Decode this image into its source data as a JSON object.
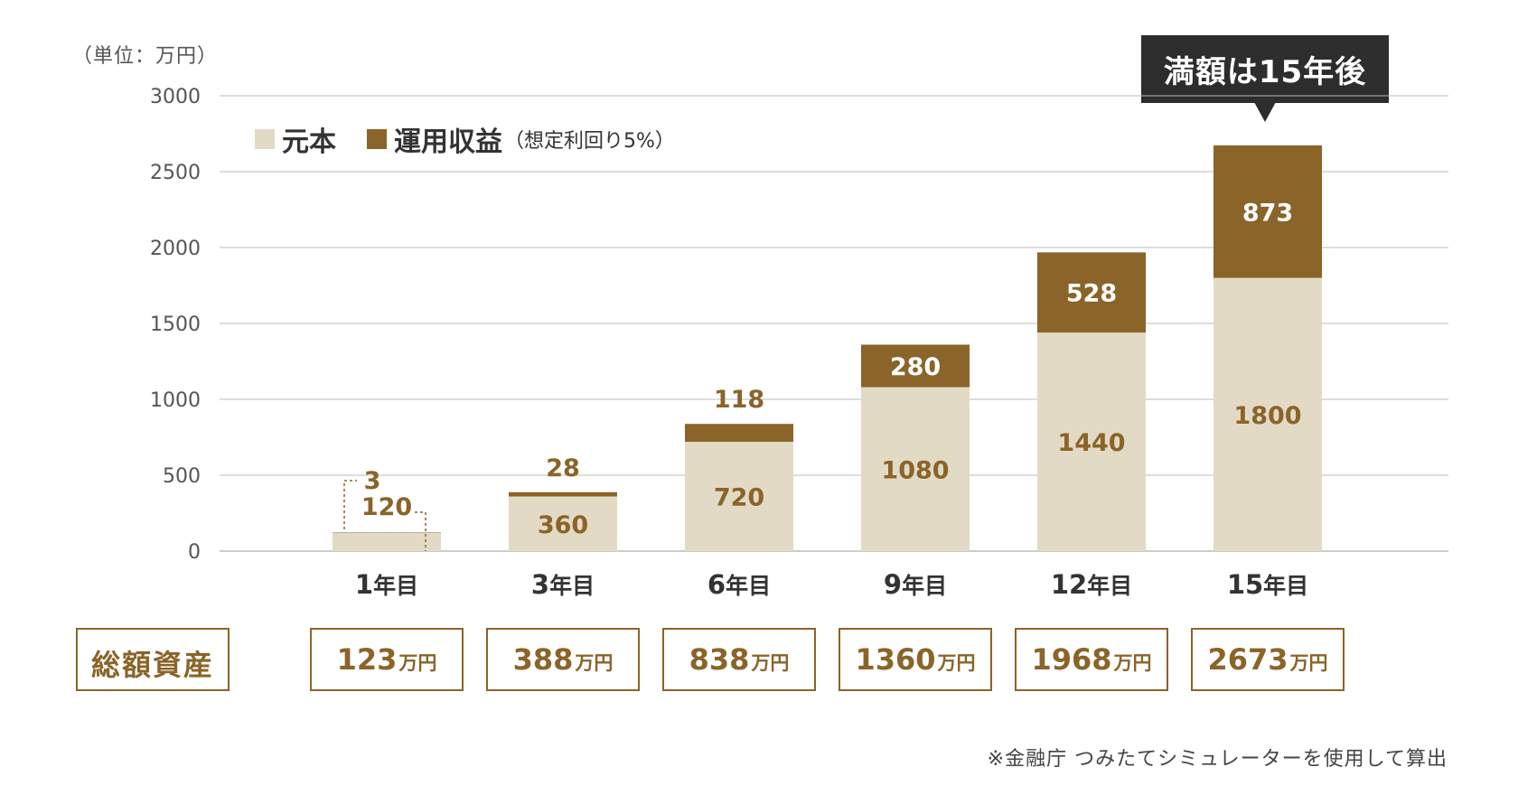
{
  "unit_label": "（単位：万円）",
  "callout": "満額は15年後",
  "legend": {
    "principal": "元本",
    "returns": "運用収益",
    "returns_note": "（想定利回り5%）"
  },
  "colors": {
    "principal": "#e3dac6",
    "returns": "#8a6428",
    "label_gold": "#8a6428",
    "grid": "#bbbbbb",
    "axis_text": "#555555"
  },
  "chart_data": {
    "type": "bar",
    "stacked": true,
    "categories": [
      "1年目",
      "3年目",
      "6年目",
      "9年目",
      "12年目",
      "15年目"
    ],
    "series": [
      {
        "name": "元本",
        "values": [
          120,
          360,
          720,
          1080,
          1440,
          1800
        ]
      },
      {
        "name": "運用収益",
        "values": [
          3,
          28,
          118,
          280,
          528,
          873
        ]
      }
    ],
    "yticks": [
      0,
      500,
      1000,
      1500,
      2000,
      2500,
      3000
    ],
    "ylim": [
      0,
      3000
    ],
    "grid": true,
    "legend_position": "top-left"
  },
  "totals": {
    "label": "総額資産",
    "suffix": "万円",
    "values": [
      "123",
      "388",
      "838",
      "1360",
      "1968",
      "2673"
    ]
  },
  "source_note": "※金融庁 つみたてシミュレーターを使用して算出"
}
